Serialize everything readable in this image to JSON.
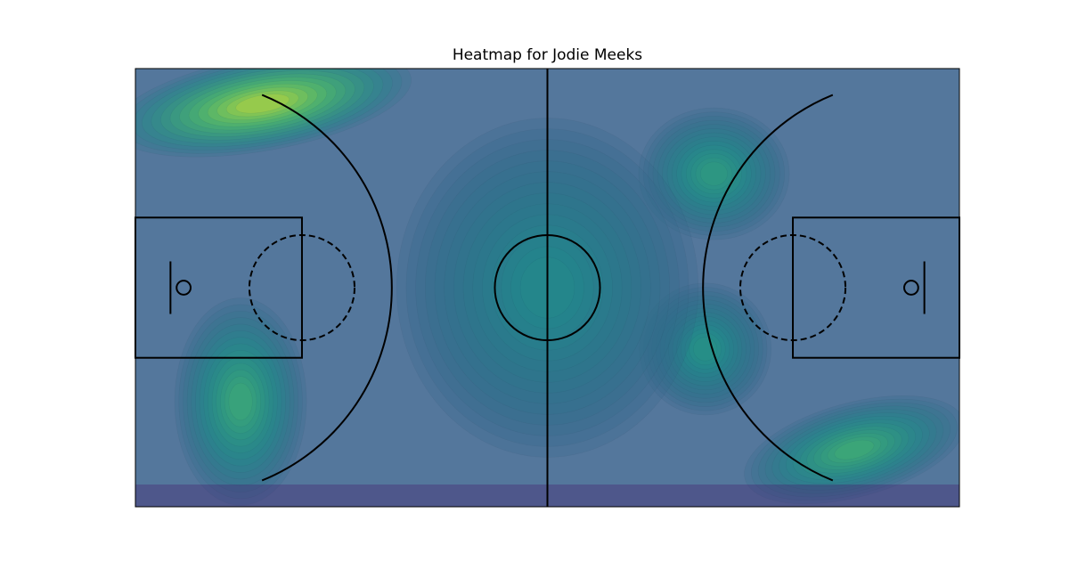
{
  "chart_data": {
    "type": "heatmap",
    "title": "Heatmap for Jodie Meeks",
    "colormap": "viridis",
    "court_xlim": [
      0,
      94
    ],
    "court_ylim": [
      0,
      50
    ],
    "density_peaks": [
      {
        "x": 14.5,
        "y": 46.0,
        "intensity": 1.0,
        "spread": [
          8.0,
          2.5
        ],
        "angle": -10
      },
      {
        "x": 12.0,
        "y": 12.0,
        "intensity": 0.55,
        "spread": [
          3.5,
          5.5
        ],
        "angle": 0
      },
      {
        "x": 82.0,
        "y": 6.5,
        "intensity": 0.58,
        "spread": [
          6.0,
          2.5
        ],
        "angle": -15
      },
      {
        "x": 66.0,
        "y": 38.0,
        "intensity": 0.45,
        "spread": [
          4.0,
          3.5
        ],
        "angle": 0
      },
      {
        "x": 65.0,
        "y": 18.0,
        "intensity": 0.38,
        "spread": [
          3.5,
          3.5
        ],
        "angle": 0
      },
      {
        "x": 47.0,
        "y": 25.0,
        "intensity": 0.32,
        "spread": [
          8.0,
          9.0
        ],
        "angle": 0
      }
    ]
  }
}
